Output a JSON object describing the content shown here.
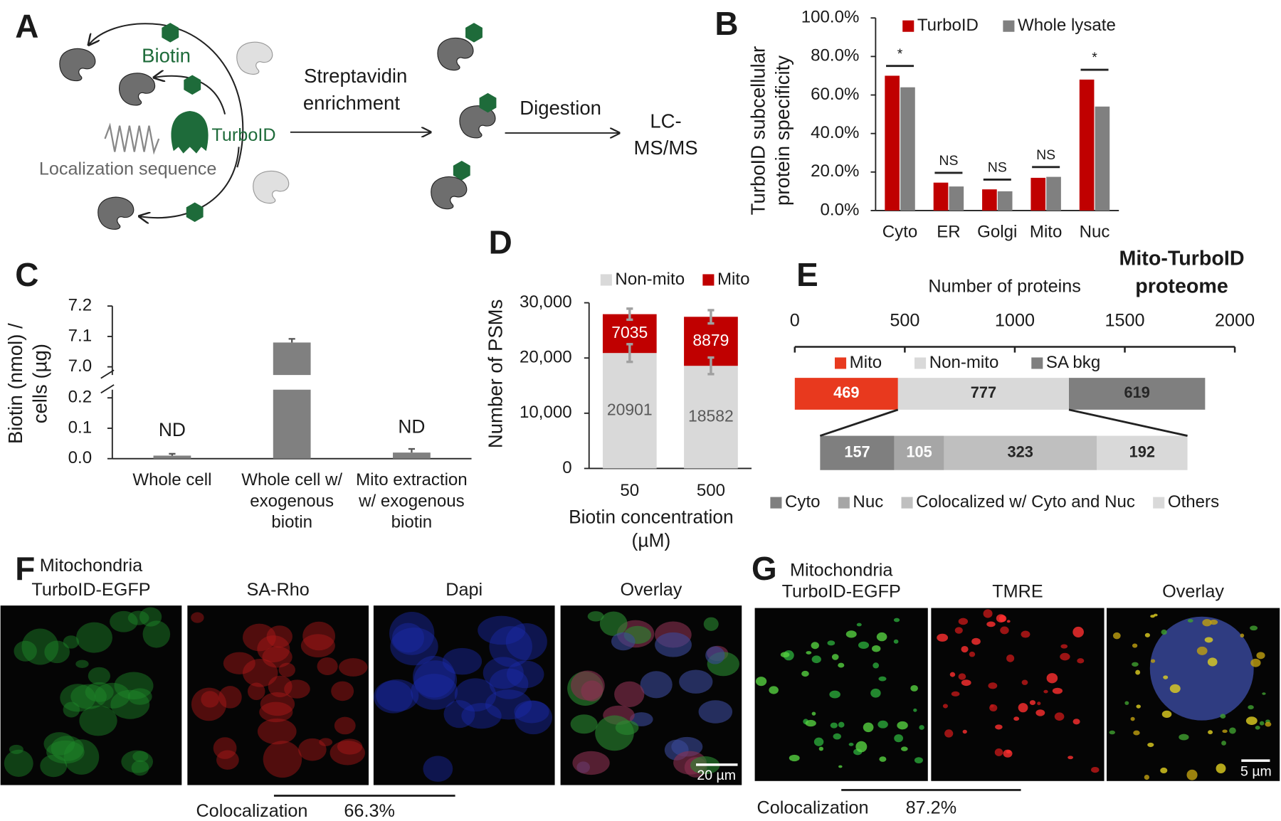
{
  "panel_labels": [
    "A",
    "B",
    "C",
    "D",
    "E",
    "F",
    "G"
  ],
  "panel_a": {
    "biotin": "Biotin",
    "enzyme": "TurboID",
    "localization": "Localization sequence",
    "step1": [
      "Streptavidin",
      "enrichment"
    ],
    "step2": "Digestion",
    "step3": [
      "LC-",
      "MS/MS"
    ]
  },
  "chart_data": [
    {
      "type": "bar",
      "ylabel": [
        "TurboID subcellular",
        "protein specificity"
      ],
      "categories": [
        "Cyto",
        "ER",
        "Golgi",
        "Mito",
        "Nuc"
      ],
      "series": [
        {
          "name": "TurboID",
          "color": "#c00000",
          "values": [
            70,
            14.5,
            11,
            17,
            68
          ]
        },
        {
          "name": "Whole lysate",
          "color": "#808080",
          "values": [
            64,
            12.5,
            10,
            17.5,
            54
          ]
        }
      ],
      "significance": [
        "*",
        "NS",
        "NS",
        "NS",
        "*"
      ],
      "ylim": [
        0,
        100
      ],
      "yticks": [
        {
          "value": 0,
          "label": "0.0%"
        },
        {
          "value": 20,
          "label": "20.0%"
        },
        {
          "value": 40,
          "label": "40.0%"
        },
        {
          "value": 60,
          "label": "60.0%"
        },
        {
          "value": 80,
          "label": "80.0%"
        },
        {
          "value": 100,
          "label": "100.0%"
        }
      ],
      "legend": "top"
    },
    {
      "type": "bar",
      "ylabel": [
        "Biotin (nmol) /",
        "cells (µg)"
      ],
      "categories": [
        [
          "Whole cell"
        ],
        [
          "Whole cell w/",
          "exogenous",
          "biotin"
        ],
        [
          "Mito extraction",
          "w/ exogenous",
          "biotin"
        ]
      ],
      "values": [
        0.01,
        7.08,
        0.02
      ],
      "errors": [
        0.006,
        0.012,
        0.012
      ],
      "color": "#808080",
      "not_detected": [
        true,
        false,
        true
      ],
      "not_detected_label": "ND",
      "ylim": [
        0,
        7.2
      ],
      "ybreak": [
        0.2,
        7.0
      ],
      "yticks": [
        {
          "value": 0,
          "label": "0.0"
        },
        0.1,
        0.2,
        {
          "value": 7,
          "label": "7.0"
        },
        7.1,
        7.2
      ]
    },
    {
      "type": "stacked_bar",
      "ylabel": [
        "Number of PSMs"
      ],
      "xlabel": [
        "Biotin concentration",
        "(µM)"
      ],
      "categories": [
        "50",
        "500"
      ],
      "series": [
        {
          "name": "Non-mito",
          "color": "#d9d9d9",
          "label_color": "#595959",
          "values": [
            20901,
            18582
          ],
          "errors": [
            1600,
            1500
          ]
        },
        {
          "name": "Mito",
          "color": "#c00000",
          "label_color": "#ffffff",
          "values": [
            7035,
            8879
          ],
          "errors": [
            1000,
            1200
          ]
        }
      ],
      "ylim": [
        0,
        30000
      ],
      "yticks": [
        0,
        {
          "value": 10000,
          "label": "10,000"
        },
        {
          "value": 20000,
          "label": "20,000"
        },
        {
          "value": 30000,
          "label": "30,000"
        }
      ],
      "legend": "top"
    },
    {
      "type": "stacked_barh",
      "title": [
        "Mito-TurboID",
        "proteome"
      ],
      "xlabel": "Number of proteins",
      "xlim": [
        0,
        2000
      ],
      "xticks": [
        0,
        500,
        1000,
        1500,
        2000
      ],
      "series": [
        {
          "name": "Mito",
          "color": "#e8391e",
          "label_color": "#ffffff",
          "values": [
            469
          ]
        },
        {
          "name": "Non-mito",
          "color": "#d9d9d9",
          "label_color": "#262626",
          "values": [
            777
          ]
        },
        {
          "name": "SA bkg",
          "color": "#7f7f7f",
          "label_color": "#262626",
          "values": [
            619
          ]
        }
      ],
      "legend": "top"
    },
    {
      "type": "stacked_barh",
      "series": [
        {
          "name": "Cyto",
          "color": "#7f7f7f",
          "label_color": "#ffffff",
          "values": [
            157
          ]
        },
        {
          "name": "Nuc",
          "color": "#a6a6a6",
          "label_color": "#ffffff",
          "values": [
            105
          ]
        },
        {
          "name": "Colocalized w/ Cyto and Nuc",
          "color": "#bfbfbf",
          "label_color": "#262626",
          "values": [
            323
          ]
        },
        {
          "name": "Others",
          "color": "#d9d9d9",
          "label_color": "#262626",
          "values": [
            192
          ]
        }
      ],
      "legend": "bottom"
    }
  ],
  "panel_f": {
    "titles": [
      [
        "Mitochondria",
        "TurboID-EGFP"
      ],
      [
        "SA-Rho"
      ],
      [
        "Dapi"
      ],
      [
        "Overlay"
      ]
    ],
    "scale_bar": "20 µm",
    "colocalization_label": "Colocalization",
    "colocalization_value": "66.3%"
  },
  "panel_g": {
    "titles": [
      [
        "Mitochondria",
        "TurboID-EGFP"
      ],
      [
        "TMRE"
      ],
      [
        "Overlay"
      ]
    ],
    "scale_bar": "5 µm",
    "colocalization_label": "Colocalization",
    "colocalization_value": "87.2%"
  }
}
